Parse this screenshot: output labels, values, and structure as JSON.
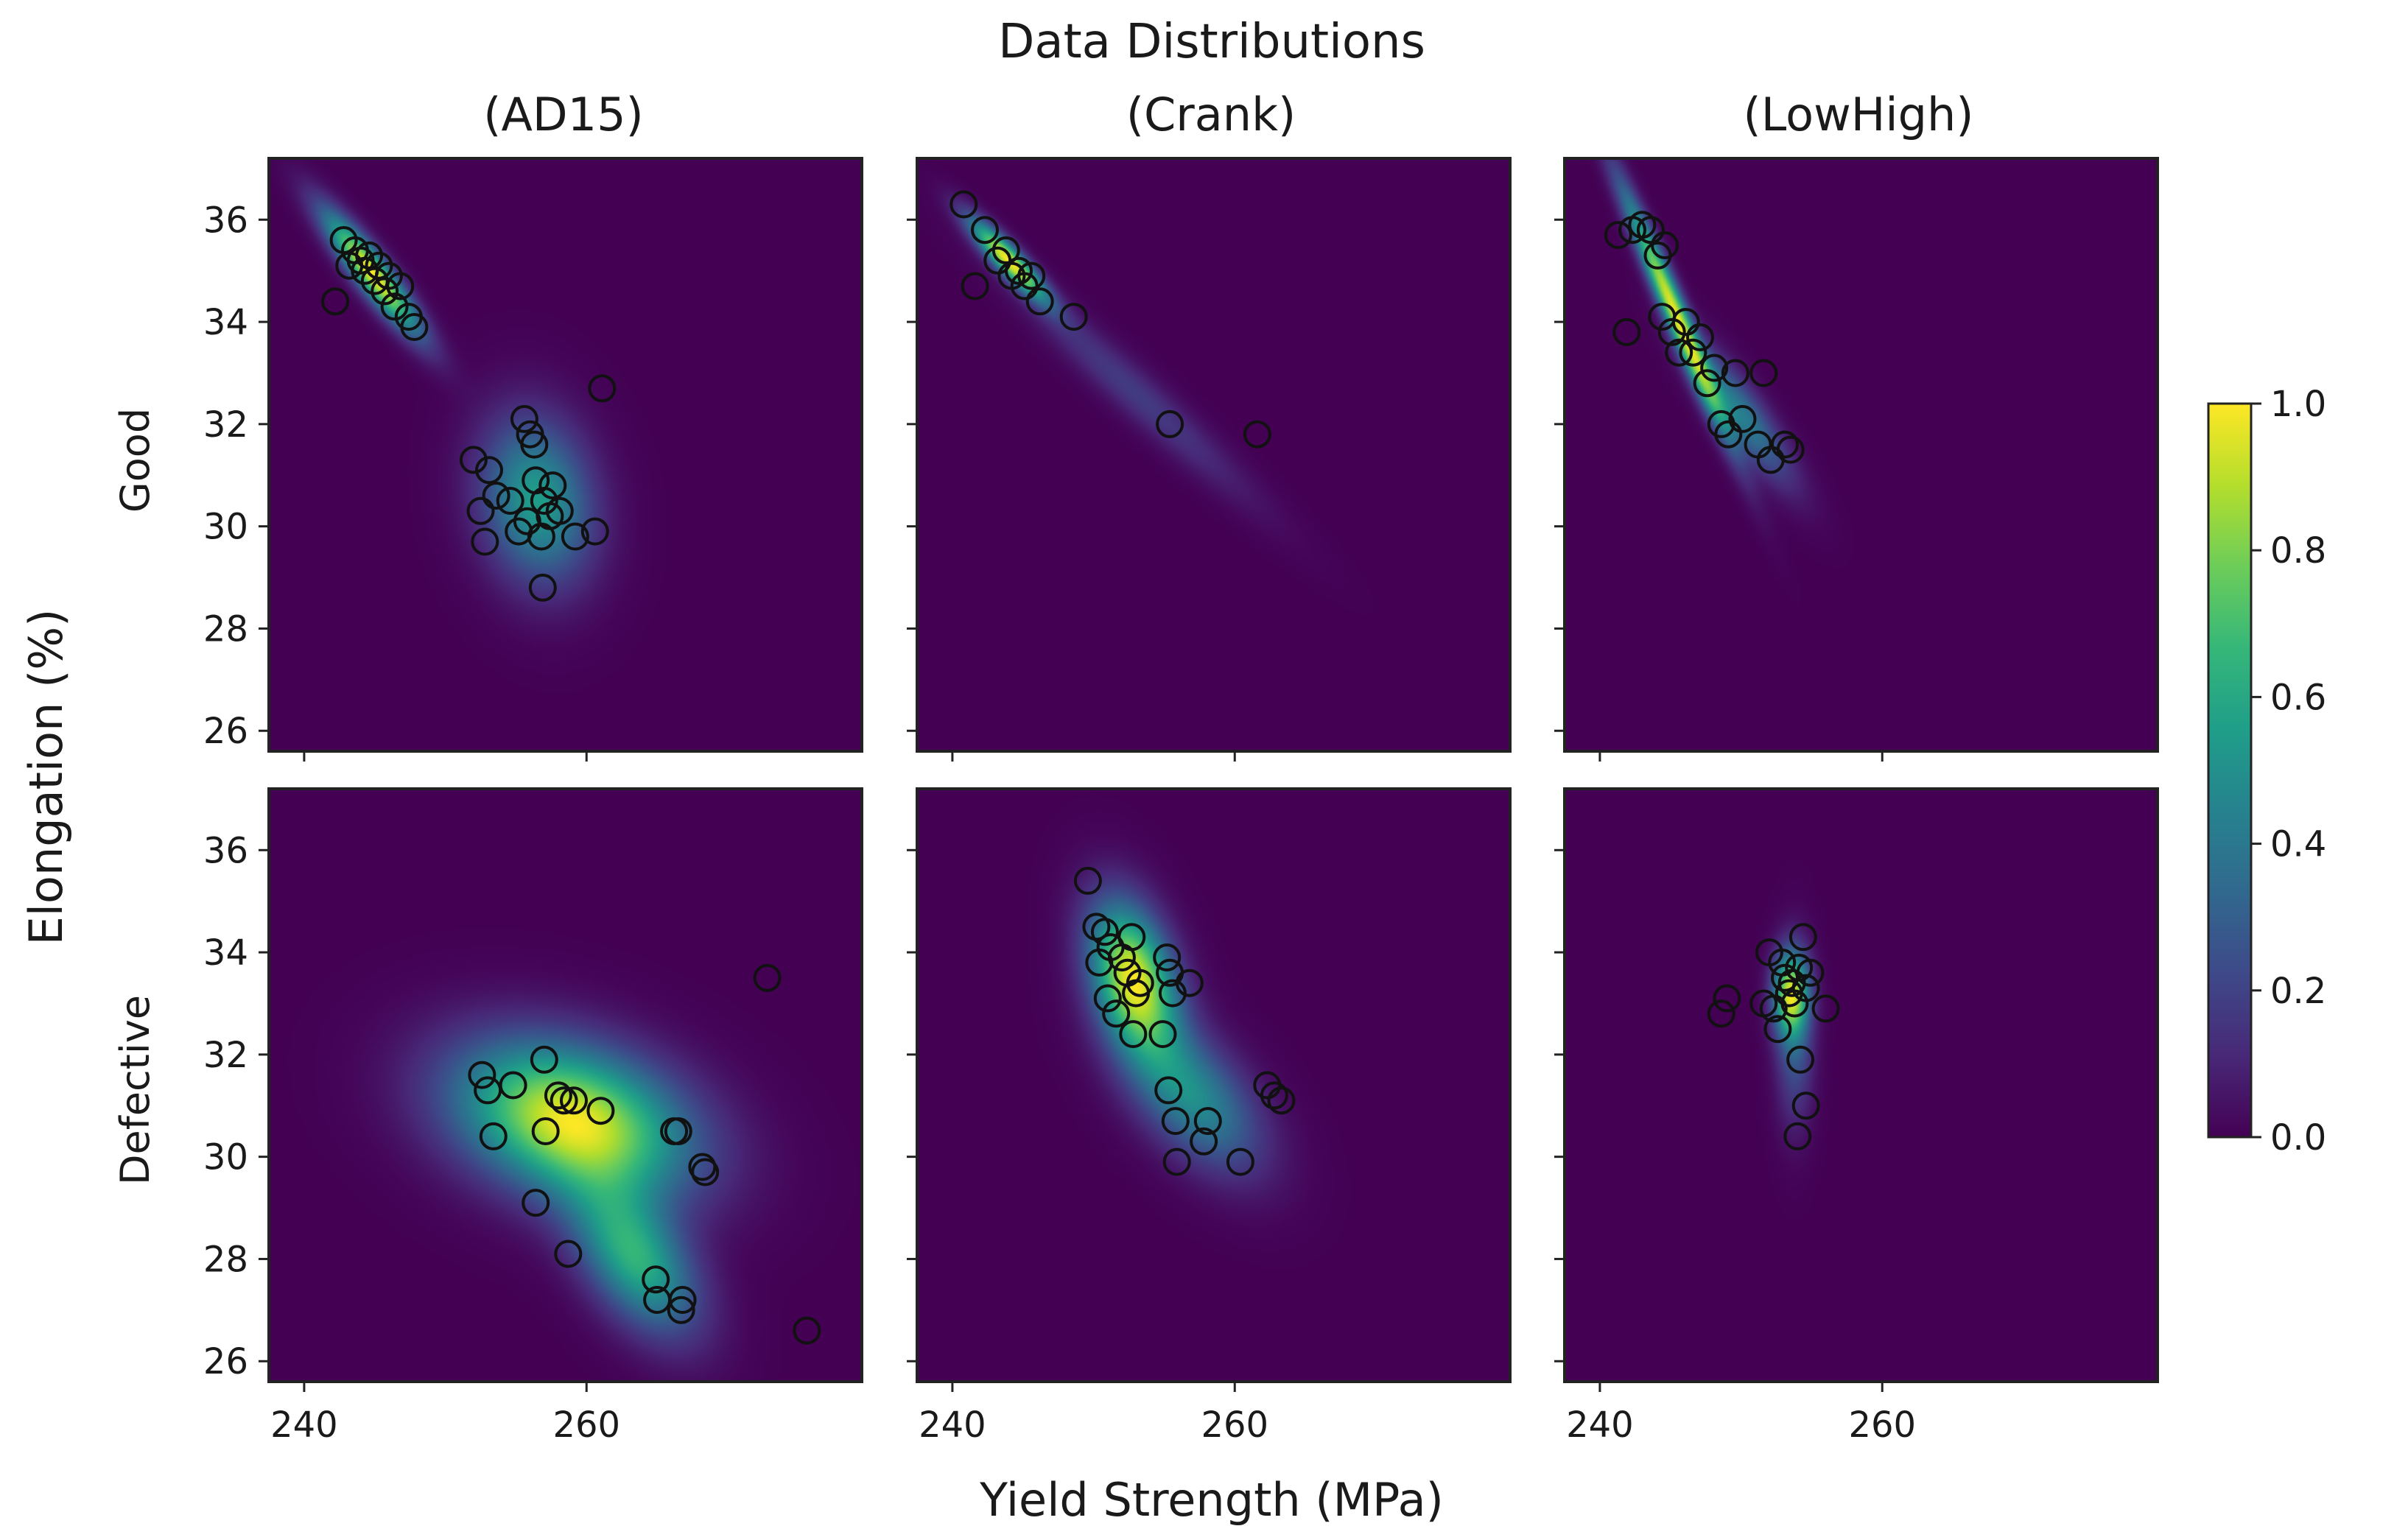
{
  "chart_data": {
    "type": "scatter",
    "title": "Data Distributions",
    "xlabel": "Yield Strength (MPa)",
    "ylabel": "Elongation (%)",
    "xlim": [
      237.5,
      279.5
    ],
    "ylim": [
      25.6,
      37.2
    ],
    "xticks": [
      240,
      260
    ],
    "yticks": [
      26,
      28,
      30,
      32,
      34,
      36
    ],
    "columns": [
      "(AD15)",
      "(Crank)",
      "(LowHigh)"
    ],
    "rows": [
      "Good",
      "Defective"
    ],
    "colorbar": {
      "ticks": [
        "0.0",
        "0.2",
        "0.4",
        "0.6",
        "0.8",
        "1.0"
      ],
      "range": [
        0,
        1
      ],
      "colormap": "viridis",
      "stops": [
        "#440154",
        "#3b528b",
        "#21918c",
        "#5ec962",
        "#fde725"
      ]
    },
    "panels": [
      {
        "row": "Good",
        "column": "(AD15)",
        "points": [
          [
            242.2,
            34.4
          ],
          [
            242.8,
            35.6
          ],
          [
            243.2,
            35.1
          ],
          [
            243.6,
            35.4
          ],
          [
            244.0,
            35.2
          ],
          [
            244.3,
            35.0
          ],
          [
            244.6,
            35.3
          ],
          [
            245.0,
            34.8
          ],
          [
            245.3,
            35.1
          ],
          [
            245.7,
            34.6
          ],
          [
            246.0,
            34.9
          ],
          [
            246.4,
            34.3
          ],
          [
            246.8,
            34.7
          ],
          [
            247.4,
            34.1
          ],
          [
            247.8,
            33.9
          ],
          [
            252.0,
            31.3
          ],
          [
            252.5,
            30.3
          ],
          [
            252.8,
            29.7
          ],
          [
            253.1,
            31.1
          ],
          [
            253.6,
            30.6
          ],
          [
            254.6,
            30.5
          ],
          [
            255.2,
            29.9
          ],
          [
            255.6,
            32.1
          ],
          [
            256.0,
            31.8
          ],
          [
            256.3,
            31.6
          ],
          [
            255.8,
            30.1
          ],
          [
            256.4,
            30.9
          ],
          [
            256.8,
            29.8
          ],
          [
            257.0,
            30.5
          ],
          [
            257.4,
            30.2
          ],
          [
            257.6,
            30.8
          ],
          [
            258.1,
            30.3
          ],
          [
            256.9,
            28.8
          ],
          [
            259.2,
            29.8
          ],
          [
            260.6,
            29.9
          ],
          [
            261.1,
            32.7
          ]
        ],
        "density": [
          {
            "mx": 244.8,
            "my": 34.95,
            "sx": 2.3,
            "sy": 0.8,
            "r": -0.9,
            "w": 1.0
          },
          {
            "mx": 256.5,
            "my": 30.5,
            "sx": 2.7,
            "sy": 1.1,
            "r": -0.15,
            "w": 0.55
          }
        ]
      },
      {
        "row": "Good",
        "column": "(Crank)",
        "points": [
          [
            240.8,
            36.3
          ],
          [
            241.6,
            34.7
          ],
          [
            242.3,
            35.8
          ],
          [
            243.2,
            35.2
          ],
          [
            243.8,
            35.4
          ],
          [
            244.2,
            34.9
          ],
          [
            244.7,
            35.0
          ],
          [
            245.1,
            34.7
          ],
          [
            245.6,
            34.9
          ],
          [
            246.2,
            34.4
          ],
          [
            248.6,
            34.1
          ],
          [
            255.4,
            32.0
          ],
          [
            261.6,
            31.8
          ]
        ],
        "density": [
          {
            "mx": 244.0,
            "my": 35.2,
            "sx": 1.9,
            "sy": 0.55,
            "r": -0.9,
            "w": 1.0
          },
          {
            "mx": 253.0,
            "my": 32.6,
            "sx": 5.5,
            "sy": 1.4,
            "r": -0.96,
            "w": 0.18
          }
        ]
      },
      {
        "row": "Good",
        "column": "(LowHigh)",
        "points": [
          [
            241.3,
            35.7
          ],
          [
            241.9,
            33.8
          ],
          [
            242.3,
            35.8
          ],
          [
            243.0,
            35.9
          ],
          [
            243.6,
            35.8
          ],
          [
            244.1,
            35.3
          ],
          [
            244.6,
            35.5
          ],
          [
            244.4,
            34.1
          ],
          [
            245.1,
            33.8
          ],
          [
            245.6,
            33.4
          ],
          [
            246.1,
            34.0
          ],
          [
            246.6,
            33.4
          ],
          [
            247.1,
            33.7
          ],
          [
            247.6,
            32.8
          ],
          [
            248.1,
            33.1
          ],
          [
            248.6,
            32.0
          ],
          [
            249.1,
            31.8
          ],
          [
            249.6,
            33.0
          ],
          [
            250.1,
            32.1
          ],
          [
            251.6,
            33.0
          ],
          [
            251.2,
            31.6
          ],
          [
            252.1,
            31.3
          ],
          [
            253.1,
            31.6
          ],
          [
            253.5,
            31.5
          ]
        ],
        "density": [
          {
            "mx": 245.3,
            "my": 34.2,
            "sx": 2.5,
            "sy": 1.6,
            "r": -0.97,
            "w": 1.0
          },
          {
            "mx": 250.0,
            "my": 32.2,
            "sx": 2.4,
            "sy": 0.9,
            "r": -0.85,
            "w": 0.45
          }
        ]
      },
      {
        "row": "Defective",
        "column": "(AD15)",
        "points": [
          [
            252.6,
            31.6
          ],
          [
            253.0,
            31.3
          ],
          [
            253.4,
            30.4
          ],
          [
            254.8,
            31.4
          ],
          [
            256.4,
            29.1
          ],
          [
            257.0,
            31.9
          ],
          [
            257.1,
            30.5
          ],
          [
            258.0,
            31.2
          ],
          [
            258.4,
            31.1
          ],
          [
            258.7,
            28.1
          ],
          [
            259.1,
            31.1
          ],
          [
            261.0,
            30.9
          ],
          [
            264.9,
            27.6
          ],
          [
            265.0,
            27.2
          ],
          [
            266.2,
            30.5
          ],
          [
            266.5,
            30.5
          ],
          [
            266.7,
            27.0
          ],
          [
            266.8,
            27.2
          ],
          [
            268.2,
            29.8
          ],
          [
            268.4,
            29.7
          ],
          [
            272.8,
            33.5
          ],
          [
            275.6,
            26.6
          ]
        ],
        "density": [
          {
            "mx": 259.0,
            "my": 30.7,
            "sx": 5.6,
            "sy": 1.05,
            "r": -0.3,
            "w": 0.95
          },
          {
            "mx": 263.5,
            "my": 28.0,
            "sx": 3.0,
            "sy": 1.0,
            "r": -0.5,
            "w": 0.6
          }
        ]
      },
      {
        "row": "Defective",
        "column": "(Crank)",
        "points": [
          [
            249.6,
            35.4
          ],
          [
            250.2,
            34.5
          ],
          [
            250.4,
            33.8
          ],
          [
            250.8,
            34.4
          ],
          [
            251.2,
            34.1
          ],
          [
            251.0,
            33.1
          ],
          [
            251.6,
            32.8
          ],
          [
            252.0,
            33.9
          ],
          [
            252.4,
            33.6
          ],
          [
            252.7,
            34.3
          ],
          [
            253.0,
            33.2
          ],
          [
            253.3,
            33.4
          ],
          [
            252.8,
            32.4
          ],
          [
            254.9,
            32.4
          ],
          [
            255.2,
            33.9
          ],
          [
            255.4,
            33.6
          ],
          [
            255.6,
            33.2
          ],
          [
            255.3,
            31.3
          ],
          [
            255.8,
            30.7
          ],
          [
            255.9,
            29.9
          ],
          [
            256.8,
            33.4
          ],
          [
            257.8,
            30.3
          ],
          [
            258.1,
            30.7
          ],
          [
            260.4,
            29.9
          ],
          [
            262.3,
            31.4
          ],
          [
            262.8,
            31.2
          ],
          [
            263.3,
            31.1
          ]
        ],
        "density": [
          {
            "mx": 252.8,
            "my": 33.5,
            "sx": 2.1,
            "sy": 1.0,
            "r": -0.35,
            "w": 1.0
          },
          {
            "mx": 257.0,
            "my": 31.2,
            "sx": 3.3,
            "sy": 1.0,
            "r": -0.55,
            "w": 0.5
          }
        ]
      },
      {
        "row": "Defective",
        "column": "(LowHigh)",
        "points": [
          [
            248.6,
            32.8
          ],
          [
            249.0,
            33.1
          ],
          [
            251.6,
            33.0
          ],
          [
            252.0,
            34.0
          ],
          [
            252.3,
            32.9
          ],
          [
            252.6,
            32.5
          ],
          [
            252.9,
            33.8
          ],
          [
            253.1,
            33.5
          ],
          [
            253.4,
            33.2
          ],
          [
            253.6,
            33.4
          ],
          [
            253.8,
            33.0
          ],
          [
            254.1,
            33.7
          ],
          [
            254.4,
            34.3
          ],
          [
            254.6,
            33.3
          ],
          [
            254.9,
            33.6
          ],
          [
            254.2,
            31.9
          ],
          [
            254.6,
            31.0
          ],
          [
            254.0,
            30.4
          ],
          [
            256.0,
            32.9
          ]
        ],
        "density": [
          {
            "mx": 253.5,
            "my": 33.2,
            "sx": 0.85,
            "sy": 0.55,
            "r": 0.0,
            "w": 1.0
          },
          {
            "mx": 253.8,
            "my": 32.3,
            "sx": 0.9,
            "sy": 1.1,
            "r": 0.0,
            "w": 0.35
          }
        ]
      }
    ]
  }
}
